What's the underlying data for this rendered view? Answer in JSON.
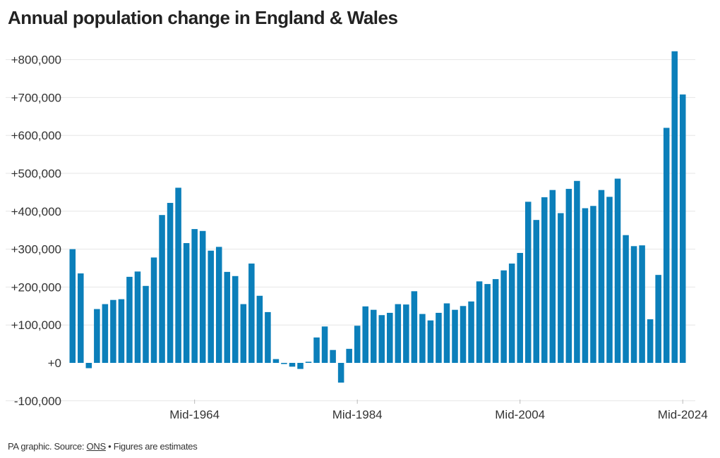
{
  "title": "Annual population change in England & Wales",
  "footer": {
    "prefix": "PA graphic. Source: ",
    "source_link": "ONS",
    "suffix": " • Figures are estimates"
  },
  "colors": {
    "bar": "#0b7fba",
    "grid": "#e6e6e6",
    "axis": "#bbbbbb",
    "text": "#333333"
  },
  "chart_data": {
    "type": "bar",
    "title": "Annual population change in England & Wales",
    "xlabel": "",
    "ylabel": "",
    "ylim": [
      -100000,
      820000
    ],
    "grid": true,
    "yticks": [
      -100000,
      0,
      100000,
      200000,
      300000,
      400000,
      500000,
      600000,
      700000,
      800000
    ],
    "ytick_labels": [
      "-100,000",
      "+0",
      "+100,000",
      "+200,000",
      "+300,000",
      "+400,000",
      "+500,000",
      "+600,000",
      "+700,000",
      "+800,000"
    ],
    "xtick_labels": [
      {
        "year": 1964,
        "label": "Mid-1964"
      },
      {
        "year": 1984,
        "label": "Mid-1984"
      },
      {
        "year": 2004,
        "label": "Mid-2004"
      },
      {
        "year": 2024,
        "label": "Mid-2024"
      }
    ],
    "years": [
      1949,
      1950,
      1951,
      1952,
      1953,
      1954,
      1955,
      1956,
      1957,
      1958,
      1959,
      1960,
      1961,
      1962,
      1963,
      1964,
      1965,
      1966,
      1967,
      1968,
      1969,
      1970,
      1971,
      1972,
      1973,
      1974,
      1975,
      1976,
      1977,
      1978,
      1979,
      1980,
      1981,
      1982,
      1983,
      1984,
      1985,
      1986,
      1987,
      1988,
      1989,
      1990,
      1991,
      1992,
      1993,
      1994,
      1995,
      1996,
      1997,
      1998,
      1999,
      2000,
      2001,
      2002,
      2003,
      2004,
      2005,
      2006,
      2007,
      2008,
      2009,
      2010,
      2011,
      2012,
      2013,
      2014,
      2015,
      2016,
      2017,
      2018,
      2019,
      2020,
      2021,
      2022,
      2023,
      2024
    ],
    "values": [
      300000,
      236000,
      -14000,
      142000,
      155000,
      166000,
      168000,
      227000,
      241000,
      203000,
      278000,
      390000,
      422000,
      462000,
      316000,
      353000,
      348000,
      296000,
      306000,
      240000,
      229000,
      155000,
      262000,
      177000,
      134000,
      10000,
      -3000,
      -10000,
      -16000,
      3000,
      67000,
      96000,
      34000,
      -52000,
      37000,
      98000,
      149000,
      140000,
      126000,
      132000,
      155000,
      154000,
      189000,
      129000,
      112000,
      132000,
      157000,
      140000,
      150000,
      162000,
      215000,
      208000,
      221000,
      244000,
      262000,
      290000,
      425000,
      377000,
      437000,
      456000,
      395000,
      459000,
      480000,
      408000,
      414000,
      456000,
      438000,
      486000,
      337000,
      308000,
      310000,
      115000,
      232000,
      620000,
      822000,
      708000
    ]
  }
}
